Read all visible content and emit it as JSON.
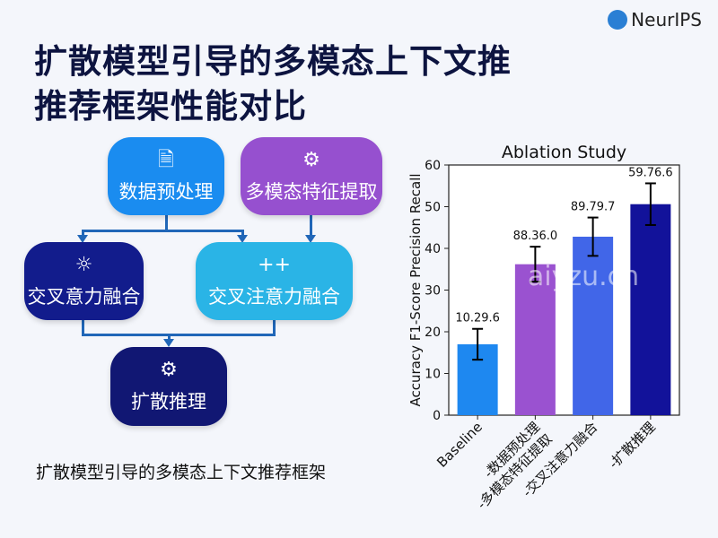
{
  "header": {
    "title_line1": "扩散模型引导的多模态上下文推",
    "title_line2": "推荐框架性能对比",
    "logo": "NeurIPS"
  },
  "diagram": {
    "nodes": [
      {
        "label": "数据预处理",
        "icon": "document-icon",
        "glyph": "🗎",
        "color": "#1a8cf0"
      },
      {
        "label": "多模态特征提取",
        "icon": "gear-icon",
        "glyph": "⚙",
        "color": "#9650cf"
      },
      {
        "label": "交叉意力融合",
        "icon": "sun-icon",
        "glyph": "☼",
        "color": "#121c8c"
      },
      {
        "label": "交叉注意力融合",
        "icon": "plus-plus-icon",
        "glyph": "++",
        "color": "#2ab4e6"
      },
      {
        "label": "扩散推理",
        "icon": "gear-icon",
        "glyph": "⚙",
        "color": "#111773"
      }
    ],
    "caption": "扩散模型引导的多模态上下文推荐框架"
  },
  "watermark": "aiyzu.cn",
  "chart_data": {
    "type": "bar",
    "title": "Ablation Study",
    "xlabel": "",
    "ylabel": "Accuracy F1-Score Precision Recall",
    "ylim": [
      0,
      60
    ],
    "yticks": [
      0,
      10,
      20,
      30,
      40,
      50,
      60
    ],
    "categories": [
      "Baseline",
      "-数据预处理\n-多模态特征提取",
      "-交叉注意力融合",
      "-扩散推理"
    ],
    "values": [
      17,
      36.2,
      42.8,
      50.6
    ],
    "errors": [
      3.7,
      4.2,
      4.6,
      5.0
    ],
    "bar_labels": [
      "10.29.6",
      "88.36.0",
      "89.79.7",
      "59.76.6"
    ],
    "colors": [
      "#1e88f0",
      "#9a52d0",
      "#4166e8",
      "#12129a"
    ]
  }
}
